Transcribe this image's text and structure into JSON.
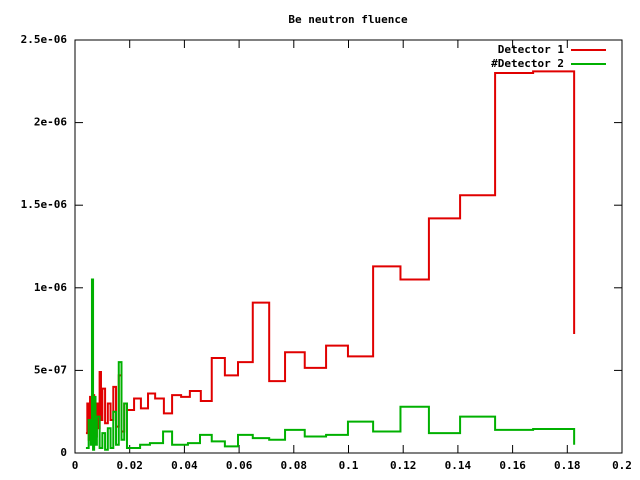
{
  "chart_data": {
    "type": "step",
    "title": "Be neutron fluence",
    "xlim": [
      0,
      0.2
    ],
    "xticks": [
      0,
      0.02,
      0.04,
      0.06,
      0.08,
      0.1,
      0.12,
      0.14,
      0.16,
      0.18,
      0.2
    ],
    "ylim": [
      0,
      2.5e-06
    ],
    "yticks": [
      0,
      {
        "value": 5e-07,
        "label": "5e-07"
      },
      {
        "value": 1e-06,
        "label": "1e-06"
      },
      {
        "value": 1.5e-06,
        "label": "1.5e-06"
      },
      {
        "value": 2e-06,
        "label": "2e-06"
      },
      {
        "value": 2.5e-06,
        "label": "2.5e-06"
      }
    ],
    "legend": "top-right",
    "series": [
      {
        "name": "Detector 1",
        "color": "#e00000",
        "x": [
          0.004,
          0.0045,
          0.005,
          0.0055,
          0.006,
          0.0065,
          0.007,
          0.0075,
          0.008,
          0.0085,
          0.009,
          0.0095,
          0.01,
          0.011,
          0.012,
          0.013,
          0.014,
          0.015,
          0.016,
          0.017,
          0.018,
          0.019,
          0.0216,
          0.0241,
          0.0267,
          0.0293,
          0.0325,
          0.0355,
          0.0388,
          0.042,
          0.046,
          0.05,
          0.0548,
          0.0596,
          0.065,
          0.071,
          0.0768,
          0.084,
          0.0918,
          0.0998,
          0.109,
          0.119,
          0.1294,
          0.1408,
          0.1536,
          0.1675,
          0.1825
        ],
        "values": [
          1.2e-07,
          3e-07,
          8e-08,
          3.4e-07,
          1.5e-07,
          3.5e-07,
          2e-07,
          1e-07,
          3e-07,
          1.5e-07,
          4.9e-07,
          2e-07,
          3.9e-07,
          1.8e-07,
          3e-07,
          2e-07,
          4e-07,
          1.6e-07,
          4.7e-07,
          1.3e-07,
          3e-07,
          2.6e-07,
          3.3e-07,
          2.7e-07,
          3.6e-07,
          3.3e-07,
          2.4e-07,
          3.5e-07,
          3.4e-07,
          3.75e-07,
          3.15e-07,
          5.75e-07,
          4.7e-07,
          5.5e-07,
          9.1e-07,
          4.35e-07,
          6.1e-07,
          5.15e-07,
          6.5e-07,
          5.85e-07,
          1.13e-06,
          1.05e-06,
          1.42e-06,
          1.56e-06,
          2.3e-06,
          2.31e-06,
          7.2e-07
        ]
      },
      {
        "name": "#Detector 2",
        "color": "#00b000",
        "x": [
          0.004,
          0.005,
          0.0058,
          0.0062,
          0.0066,
          0.007,
          0.0075,
          0.008,
          0.009,
          0.01,
          0.011,
          0.012,
          0.013,
          0.014,
          0.015,
          0.016,
          0.017,
          0.018,
          0.019,
          0.0238,
          0.0274,
          0.0322,
          0.0355,
          0.0413,
          0.0457,
          0.05,
          0.0548,
          0.0596,
          0.065,
          0.071,
          0.0768,
          0.084,
          0.0918,
          0.0998,
          0.109,
          0.119,
          0.1294,
          0.1408,
          0.1536,
          0.1675,
          0.1825
        ],
        "values": [
          3e-08,
          2e-07,
          5e-08,
          1.05e-06,
          2e-08,
          3.4e-07,
          5e-08,
          2.2e-07,
          3e-08,
          1.2e-07,
          2e-08,
          1.5e-07,
          3e-08,
          2.5e-07,
          5e-08,
          5.5e-07,
          8e-08,
          3e-07,
          3e-08,
          5e-08,
          6e-08,
          1.3e-07,
          5e-08,
          6e-08,
          1.1e-07,
          7e-08,
          4e-08,
          1.1e-07,
          9e-08,
          8e-08,
          1.4e-07,
          1e-07,
          1.1e-07,
          1.9e-07,
          1.3e-07,
          2.8e-07,
          1.2e-07,
          2.2e-07,
          1.4e-07,
          1.45e-07,
          5e-08
        ]
      }
    ]
  }
}
